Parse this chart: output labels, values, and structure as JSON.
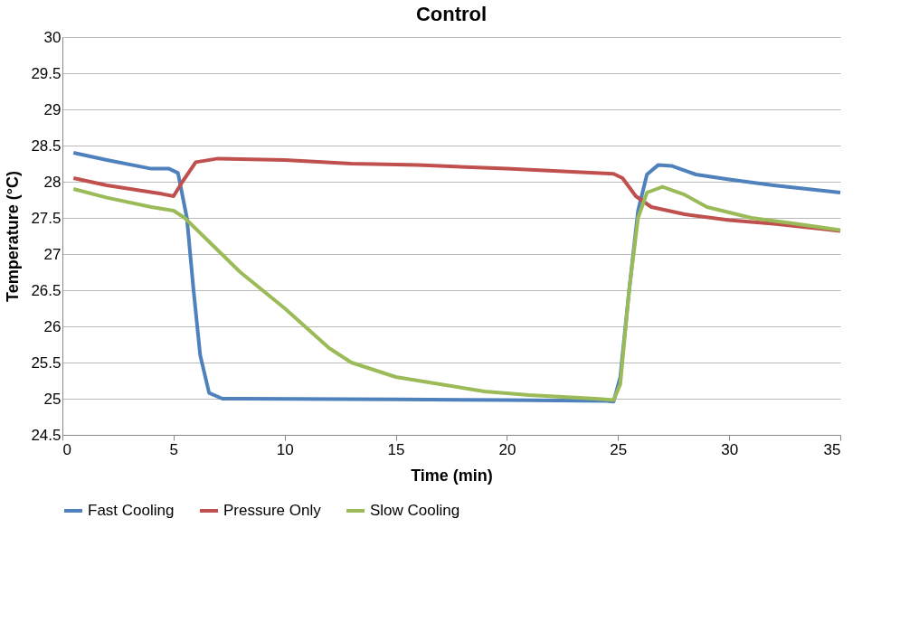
{
  "chart_data": {
    "type": "line",
    "title": "Control",
    "xlabel": "Time (min)",
    "ylabel": "Temperature (°C)",
    "xlim": [
      0,
      35
    ],
    "xticks": [
      0,
      5,
      10,
      15,
      20,
      25,
      30,
      35
    ],
    "ylim": [
      24.5,
      30
    ],
    "yticks": [
      24.5,
      25,
      25.5,
      26,
      26.5,
      27,
      27.5,
      28,
      28.5,
      29,
      29.5,
      30
    ],
    "grid": "y",
    "legend": "bottom",
    "marker": "none",
    "line_style": "solid",
    "series": [
      {
        "name": "Fast Cooling",
        "color": "#4f81bd",
        "x": [
          0.5,
          2,
          4,
          4.8,
          5.2,
          5.6,
          5.9,
          6.2,
          6.6,
          7.2,
          8,
          15,
          20,
          24.5,
          24.8,
          25.1,
          25.5,
          25.9,
          26.3,
          26.8,
          27.4,
          28.5,
          30,
          32,
          35
        ],
        "values": [
          28.4,
          28.3,
          28.18,
          28.18,
          28.12,
          27.5,
          26.5,
          25.6,
          25.08,
          25.0,
          25.0,
          24.99,
          24.98,
          24.97,
          24.96,
          25.3,
          26.5,
          27.6,
          28.1,
          28.23,
          28.22,
          28.1,
          28.03,
          27.95,
          27.85
        ]
      },
      {
        "name": "Pressure Only",
        "color": "#c0504d",
        "x": [
          0.5,
          2,
          4.5,
          5,
          5.4,
          6,
          7,
          10,
          13,
          16,
          20,
          24.8,
          25.2,
          25.8,
          26.5,
          28,
          30,
          32,
          35
        ],
        "values": [
          28.05,
          27.95,
          27.83,
          27.8,
          28.0,
          28.27,
          28.32,
          28.3,
          28.25,
          28.23,
          28.18,
          28.11,
          28.05,
          27.8,
          27.65,
          27.55,
          27.47,
          27.42,
          27.32
        ]
      },
      {
        "name": "Slow Cooling",
        "color": "#9bbb59",
        "x": [
          0.5,
          2,
          4,
          5,
          5.5,
          6.5,
          8,
          10,
          12,
          13,
          15,
          17,
          19,
          21,
          24,
          24.8,
          25.1,
          25.5,
          25.9,
          26.3,
          27,
          28,
          29,
          31,
          33,
          35
        ],
        "values": [
          27.9,
          27.78,
          27.65,
          27.6,
          27.5,
          27.2,
          26.75,
          26.25,
          25.7,
          25.5,
          25.3,
          25.2,
          25.1,
          25.05,
          25.0,
          24.98,
          25.2,
          26.5,
          27.5,
          27.85,
          27.93,
          27.82,
          27.65,
          27.5,
          27.42,
          27.33
        ]
      }
    ]
  }
}
